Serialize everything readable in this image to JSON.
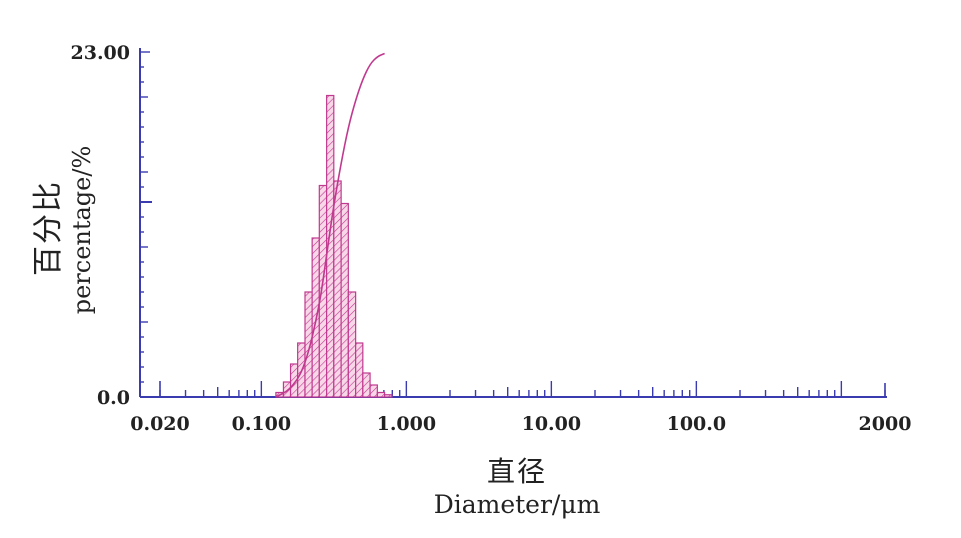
{
  "chart_data": {
    "type": "bar",
    "x_scale": "log",
    "x_tick_labels": [
      "0.020",
      "0.100",
      "1.000",
      "10.00",
      "100.0",
      "2000"
    ],
    "x_ticks": [
      0.02,
      0.1,
      1,
      10,
      100,
      2000
    ],
    "xlim": [
      0.02,
      2000
    ],
    "y_tick_labels": [
      "23.00",
      "0.0"
    ],
    "y_ticks": [
      23,
      0
    ],
    "ylim": [
      0,
      23
    ],
    "xlabel_cn": "直径",
    "xlabel": "Diameter/μm",
    "ylabel_cn": "百分比",
    "ylabel": "percentage/%",
    "grid": false,
    "legend": "none",
    "colors": {
      "axis": "#3b3bb0",
      "bars": "#c0398f",
      "bar_fill": "#f3c6df",
      "curve": "#c0398f"
    },
    "bars": [
      {
        "d0": 0.126,
        "d1": 0.142,
        "value": 0.3
      },
      {
        "d0": 0.142,
        "d1": 0.159,
        "value": 1.0
      },
      {
        "d0": 0.159,
        "d1": 0.178,
        "value": 2.2
      },
      {
        "d0": 0.178,
        "d1": 0.2,
        "value": 3.6
      },
      {
        "d0": 0.2,
        "d1": 0.224,
        "value": 7.0
      },
      {
        "d0": 0.224,
        "d1": 0.251,
        "value": 10.6
      },
      {
        "d0": 0.251,
        "d1": 0.282,
        "value": 14.1
      },
      {
        "d0": 0.282,
        "d1": 0.316,
        "value": 20.1
      },
      {
        "d0": 0.316,
        "d1": 0.355,
        "value": 14.4
      },
      {
        "d0": 0.355,
        "d1": 0.398,
        "value": 12.9
      },
      {
        "d0": 0.398,
        "d1": 0.447,
        "value": 7.0
      },
      {
        "d0": 0.447,
        "d1": 0.501,
        "value": 3.6
      },
      {
        "d0": 0.501,
        "d1": 0.562,
        "value": 1.6
      },
      {
        "d0": 0.562,
        "d1": 0.631,
        "value": 0.8
      },
      {
        "d0": 0.631,
        "d1": 0.708,
        "value": 0.3
      },
      {
        "d0": 0.708,
        "d1": 0.794,
        "value": 0.15
      }
    ],
    "cumulative_curve": [
      {
        "x": 0.126,
        "y": 0.0
      },
      {
        "x": 0.159,
        "y": 0.5
      },
      {
        "x": 0.2,
        "y": 2.0
      },
      {
        "x": 0.251,
        "y": 6.0
      },
      {
        "x": 0.282,
        "y": 9.5
      },
      {
        "x": 0.316,
        "y": 12.8
      },
      {
        "x": 0.355,
        "y": 15.6
      },
      {
        "x": 0.398,
        "y": 18.0
      },
      {
        "x": 0.447,
        "y": 19.8
      },
      {
        "x": 0.501,
        "y": 21.2
      },
      {
        "x": 0.562,
        "y": 22.2
      },
      {
        "x": 0.631,
        "y": 22.7
      },
      {
        "x": 0.708,
        "y": 22.9
      }
    ]
  }
}
